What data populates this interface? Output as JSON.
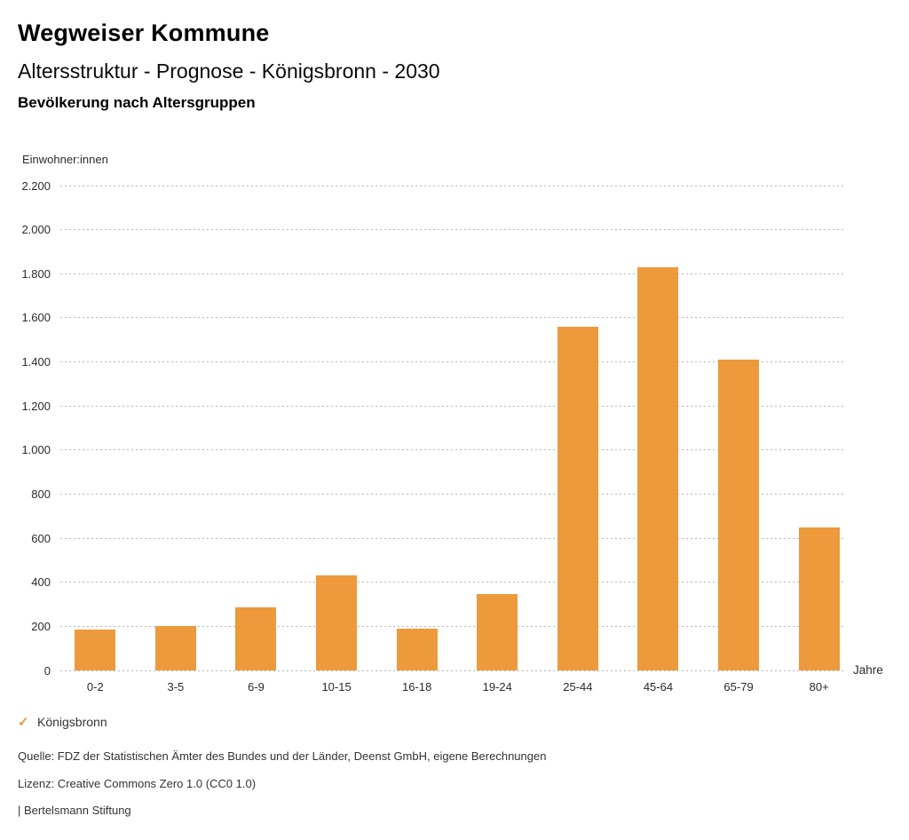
{
  "header": {
    "title": "Wegweiser Kommune",
    "subtitle": "Altersstruktur - Prognose - Königsbronn - 2030",
    "chart_heading": "Bevölkerung nach Altersgruppen"
  },
  "legend": {
    "checkmark": "✓",
    "label": "Königsbronn"
  },
  "footer": {
    "source": "Quelle: FDZ der Statistischen Ämter des Bundes und der Länder, Deenst GmbH, eigene Berechnungen",
    "license": "Lizenz: Creative Commons Zero 1.0 (CC0 1.0)",
    "attribution": "| Bertelsmann Stiftung"
  },
  "colors": {
    "bar": "#EC9A3C",
    "grid": "#b6b6b6",
    "text": "#2b2b2b"
  },
  "chart_data": {
    "type": "bar",
    "title": "Bevölkerung nach Altersgruppen",
    "subtitle": "Altersstruktur - Prognose - Königsbronn - 2030",
    "categories": [
      "0-2",
      "3-5",
      "6-9",
      "10-15",
      "16-18",
      "19-24",
      "25-44",
      "45-64",
      "65-79",
      "80+"
    ],
    "series": [
      {
        "name": "Königsbronn",
        "values": [
          185,
          200,
          285,
          430,
          190,
          345,
          1560,
          1830,
          1410,
          650
        ]
      }
    ],
    "xlabel": "Jahre",
    "ylabel": "Einwohner:innen",
    "ylim": [
      0,
      2200
    ],
    "ytick_step": 200,
    "ytick_labels": [
      "0",
      "200",
      "400",
      "600",
      "800",
      "1.000",
      "1.200",
      "1.400",
      "1.600",
      "1.800",
      "2.000",
      "2.200"
    ],
    "grid": "horizontal-dotted",
    "legend_position": "bottom-left"
  }
}
